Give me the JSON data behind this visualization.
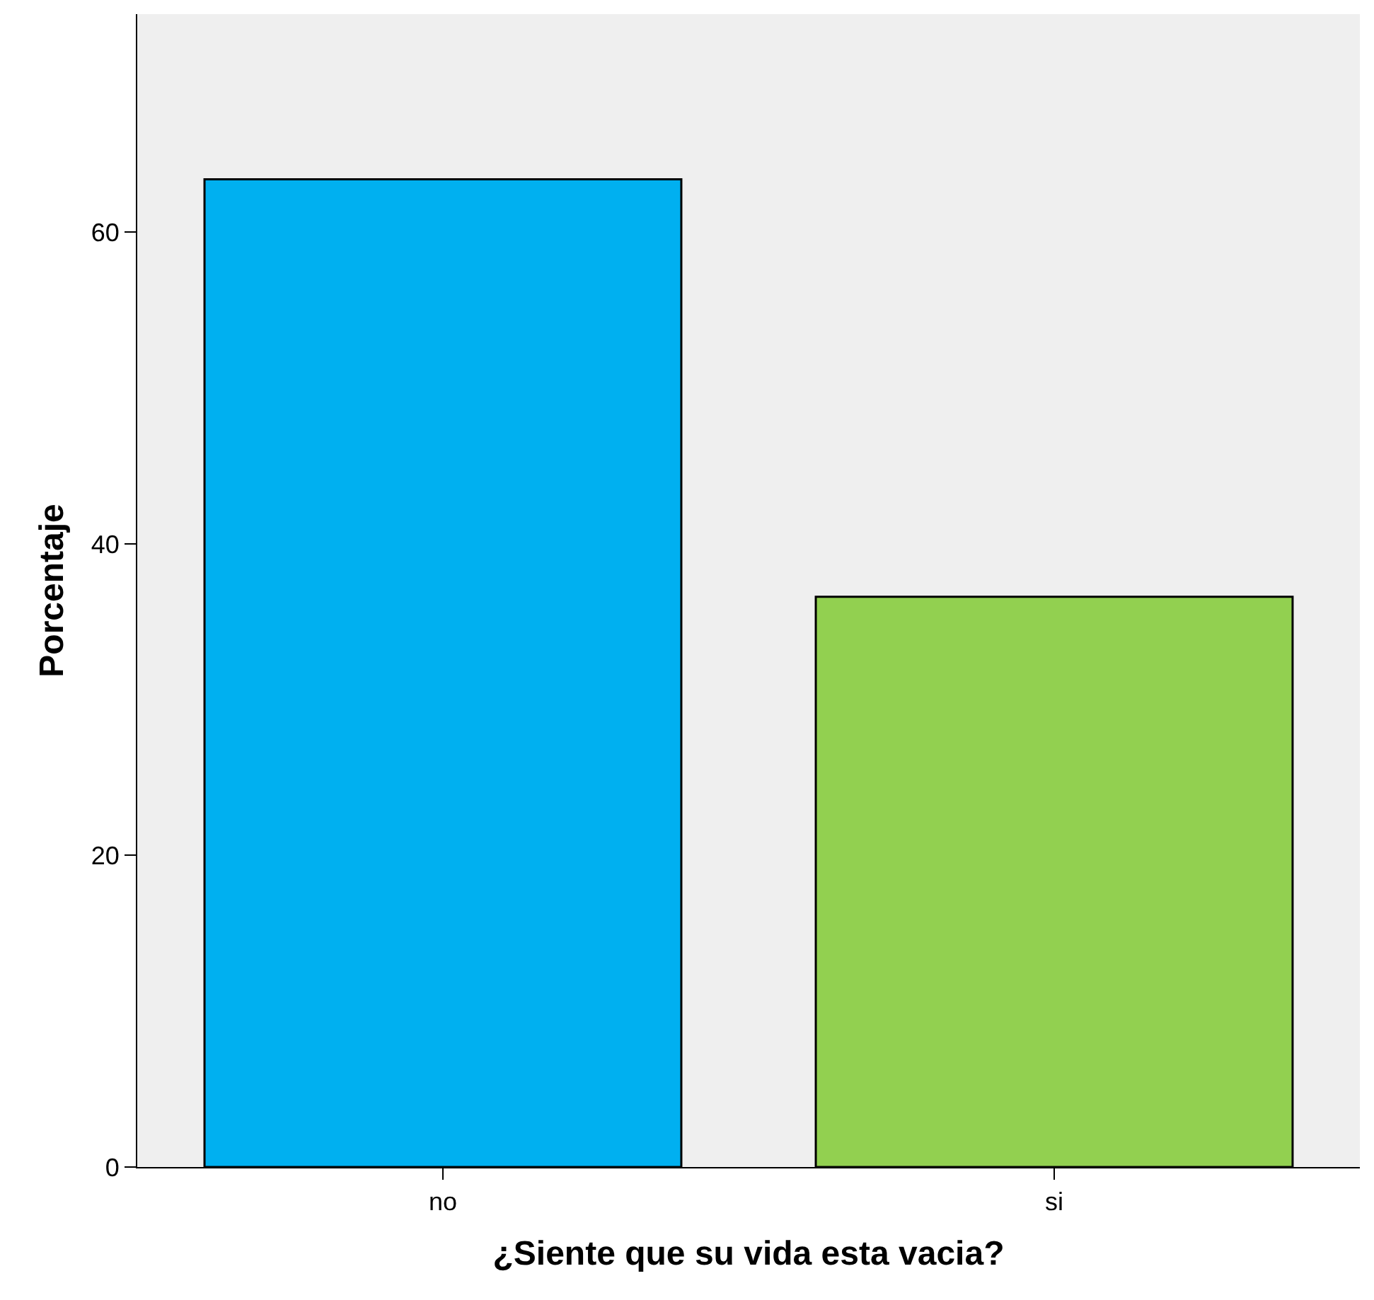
{
  "chart_data": {
    "type": "bar",
    "xlabel": "¿Siente que su vida esta vacia?",
    "ylabel": "Porcentaje",
    "categories": [
      "no",
      "si"
    ],
    "values": [
      63.4,
      36.6
    ],
    "colors": [
      "#00b0f0",
      "#92d050"
    ],
    "ylim": [
      0,
      74
    ],
    "yticks": [
      0,
      20,
      40,
      60
    ],
    "grid": false
  }
}
